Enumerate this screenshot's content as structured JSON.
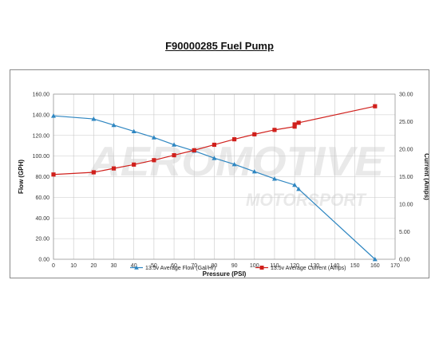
{
  "chart_data": {
    "type": "line",
    "title": "F90000285 Fuel Pump",
    "xlabel": "Pressure (PSI)",
    "ylabel": "Flow (GPH)",
    "y2label": "Current (Amps)",
    "xlim": [
      0,
      170
    ],
    "ylim": [
      0,
      160
    ],
    "y2lim": [
      0,
      30
    ],
    "x_ticks": [
      0,
      10,
      20,
      30,
      40,
      50,
      60,
      70,
      80,
      90,
      100,
      110,
      120,
      130,
      140,
      150,
      160,
      170
    ],
    "y_ticks": [
      "0.00",
      "20.00",
      "40.00",
      "60.00",
      "80.00",
      "100.00",
      "120.00",
      "140.00",
      "160.00"
    ],
    "y2_ticks": [
      "0.00",
      "5.00",
      "10.00",
      "15.00",
      "20.00",
      "25.00",
      "30.00"
    ],
    "grid": true,
    "legend_position": "bottom",
    "series": [
      {
        "name": "13.5v Average Flow (Gal/Hr)",
        "axis": "left",
        "color": "#2e86c1",
        "marker": "triangle",
        "x": [
          0,
          20,
          30,
          40,
          50,
          60,
          70,
          80,
          90,
          100,
          110,
          120,
          122,
          160
        ],
        "values": [
          139,
          136,
          130,
          124,
          118,
          111,
          105,
          98,
          92,
          85,
          78,
          72,
          68,
          0
        ]
      },
      {
        "name": "13.5v Average Current (Amps)",
        "axis": "right",
        "color": "#d0201c",
        "marker": "square",
        "x": [
          0,
          20,
          30,
          40,
          50,
          60,
          70,
          80,
          90,
          100,
          110,
          120,
          120,
          122,
          160
        ],
        "values": [
          15.4,
          15.8,
          16.5,
          17.2,
          18.0,
          18.9,
          19.8,
          20.8,
          21.8,
          22.7,
          23.5,
          24.1,
          24.5,
          24.8,
          27.8
        ]
      }
    ]
  },
  "watermark": {
    "line1": "AEROMOTIVE",
    "line2": "MOTORSPORT"
  }
}
